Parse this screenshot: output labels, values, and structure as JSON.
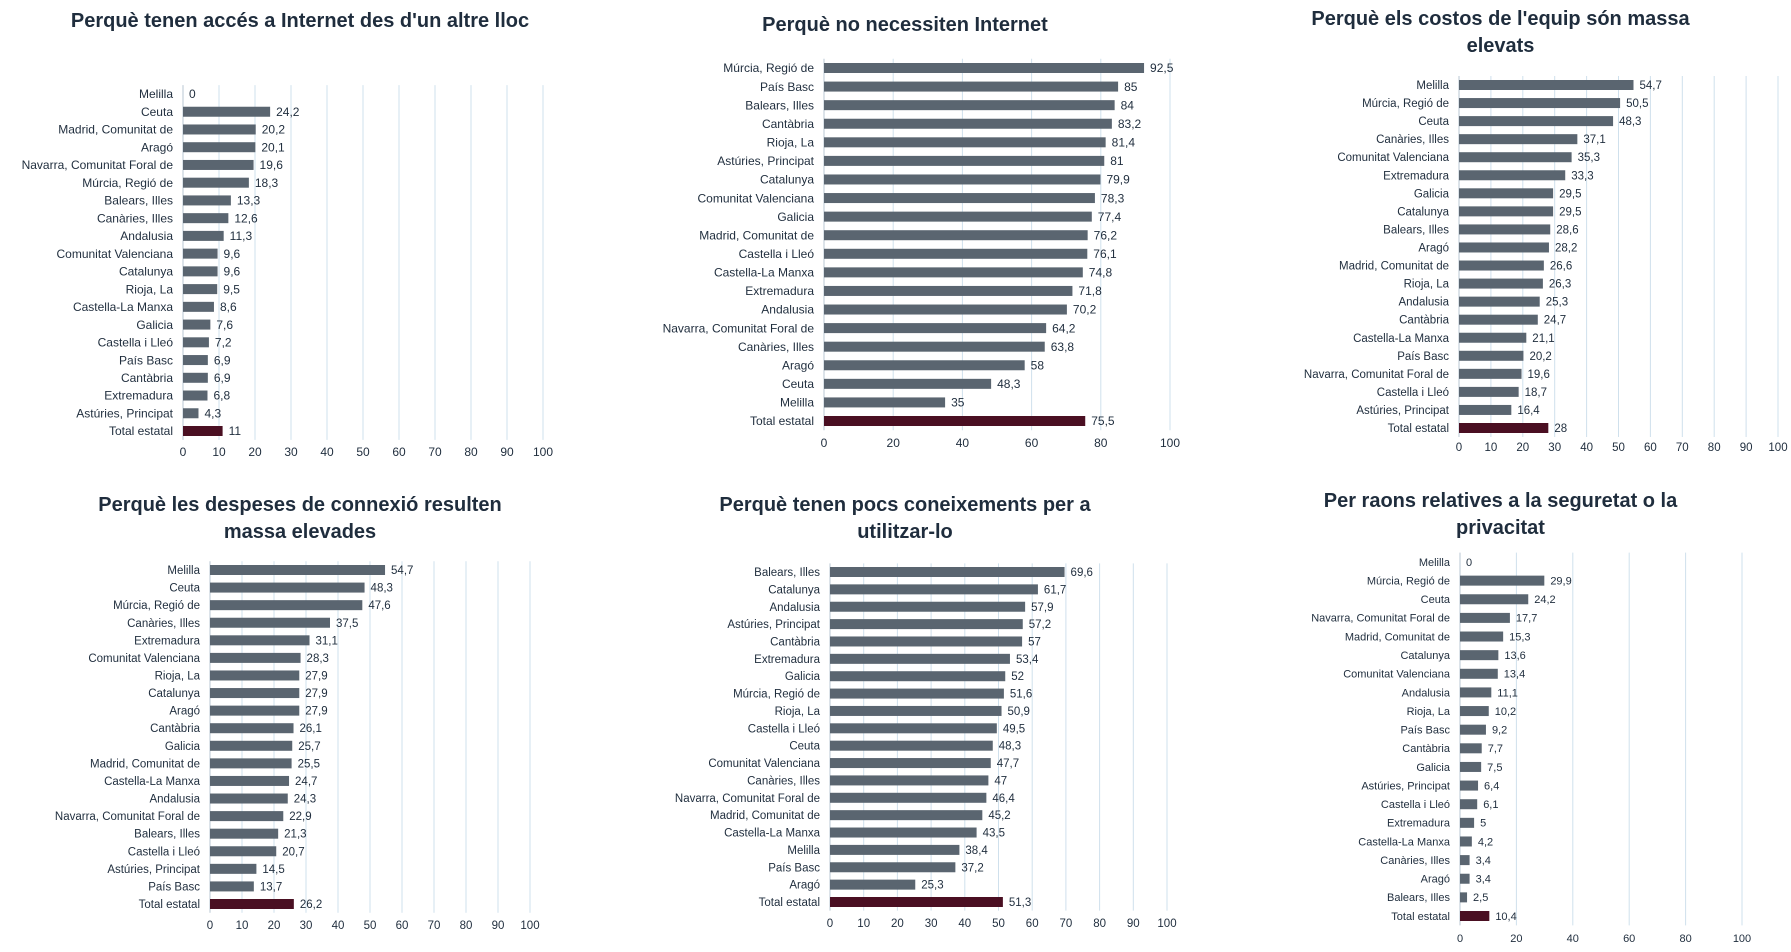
{
  "colors": {
    "bar": "#5a6570",
    "total_bar": "#4a0f22",
    "grid": "#cfe0ec",
    "text": "#1f2d3d"
  },
  "chart_data": [
    {
      "type": "bar",
      "title": "Perquè tenen accés a Internet des d'un altre lloc",
      "categories": [
        "Melilla",
        "Ceuta",
        "Madrid, Comunitat de",
        "Aragó",
        "Navarra, Comunitat Foral de",
        "Múrcia, Regió de",
        "Balears, Illes",
        "Canàries, Illes",
        "Andalusia",
        "Comunitat Valenciana",
        "Catalunya",
        "Rioja, La",
        "Castella-La Manxa",
        "Galicia",
        "Castella i Lleó",
        "País Basc",
        "Cantàbria",
        "Extremadura",
        "Astúries, Principat",
        "Total estatal"
      ],
      "values": [
        0,
        24.2,
        20.2,
        20.1,
        19.6,
        18.3,
        13.3,
        12.6,
        11.3,
        9.6,
        9.6,
        9.5,
        8.6,
        7.6,
        7.2,
        6.9,
        6.9,
        6.8,
        4.3,
        11
      ],
      "value_labels": [
        "0",
        "24,2",
        "20,2",
        "20,1",
        "19,6",
        "18,3",
        "13,3",
        "12,6",
        "11,3",
        "9,6",
        "9,6",
        "9,5",
        "8,6",
        "7,6",
        "7,2",
        "6,9",
        "6,9",
        "6,8",
        "4,3",
        "11"
      ],
      "xlim": [
        0,
        100
      ],
      "ticks": [
        0,
        10,
        20,
        30,
        40,
        50,
        60,
        70,
        80,
        90,
        100
      ],
      "tick_labels": [
        "0",
        "10",
        "20",
        "30",
        "40",
        "50",
        "60",
        "70",
        "80",
        "90",
        "100"
      ],
      "highlight": "Total estatal",
      "xlabel": "",
      "ylabel": "",
      "grid": true
    },
    {
      "type": "bar",
      "title": "Perquè no necessiten Internet",
      "categories": [
        "Múrcia, Regió de",
        "País Basc",
        "Balears, Illes",
        "Cantàbria",
        "Rioja, La",
        "Astúries, Principat",
        "Catalunya",
        "Comunitat Valenciana",
        "Galicia",
        "Madrid, Comunitat de",
        "Castella i Lleó",
        "Castella-La Manxa",
        "Extremadura",
        "Andalusia",
        "Navarra, Comunitat Foral de",
        "Canàries, Illes",
        "Aragó",
        "Ceuta",
        "Melilla",
        "Total estatal"
      ],
      "values": [
        92.5,
        85,
        84,
        83.2,
        81.4,
        81,
        79.9,
        78.3,
        77.4,
        76.2,
        76.1,
        74.8,
        71.8,
        70.2,
        64.2,
        63.8,
        58,
        48.3,
        35,
        75.5
      ],
      "value_labels": [
        "92,5",
        "85",
        "84",
        "83,2",
        "81,4",
        "81",
        "79,9",
        "78,3",
        "77,4",
        "76,2",
        "76,1",
        "74,8",
        "71,8",
        "70,2",
        "64,2",
        "63,8",
        "58",
        "48,3",
        "35",
        "75,5"
      ],
      "xlim": [
        0,
        100
      ],
      "ticks": [
        0,
        20,
        40,
        60,
        80,
        100
      ],
      "tick_labels": [
        "0",
        "20",
        "40",
        "60",
        "80",
        "100"
      ],
      "highlight": "Total estatal",
      "xlabel": "",
      "ylabel": "",
      "grid": true
    },
    {
      "type": "bar",
      "title": "Perquè els costos de l'equip són massa elevats",
      "categories": [
        "Melilla",
        "Múrcia, Regió de",
        "Ceuta",
        "Canàries, Illes",
        "Comunitat Valenciana",
        "Extremadura",
        "Galicia",
        "Catalunya",
        "Balears, Illes",
        "Aragó",
        "Madrid, Comunitat de",
        "Rioja, La",
        "Andalusia",
        "Cantàbria",
        "Castella-La Manxa",
        "País Basc",
        "Navarra, Comunitat Foral de",
        "Castella i Lleó",
        "Astúries, Principat",
        "Total estatal"
      ],
      "values": [
        54.7,
        50.5,
        48.3,
        37.1,
        35.3,
        33.3,
        29.5,
        29.5,
        28.6,
        28.2,
        26.6,
        26.3,
        25.3,
        24.7,
        21.1,
        20.2,
        19.6,
        18.7,
        16.4,
        28
      ],
      "value_labels": [
        "54,7",
        "50,5",
        "48,3",
        "37,1",
        "35,3",
        "33,3",
        "29,5",
        "29,5",
        "28,6",
        "28,2",
        "26,6",
        "26,3",
        "25,3",
        "24,7",
        "21,1",
        "20,2",
        "19,6",
        "18,7",
        "16,4",
        "28"
      ],
      "xlim": [
        0,
        100
      ],
      "ticks": [
        0,
        10,
        20,
        30,
        40,
        50,
        60,
        70,
        80,
        90,
        100
      ],
      "tick_labels": [
        "0",
        "10",
        "20",
        "30",
        "40",
        "50",
        "60",
        "70",
        "80",
        "90",
        "100"
      ],
      "highlight": "Total estatal",
      "xlabel": "",
      "ylabel": "",
      "grid": true
    },
    {
      "type": "bar",
      "title": "Perquè les despeses de connexió resulten massa elevades",
      "categories": [
        "Melilla",
        "Ceuta",
        "Múrcia, Regió de",
        "Canàries, Illes",
        "Extremadura",
        "Comunitat Valenciana",
        "Rioja, La",
        "Catalunya",
        "Aragó",
        "Cantàbria",
        "Galicia",
        "Madrid, Comunitat de",
        "Castella-La Manxa",
        "Andalusia",
        "Navarra, Comunitat Foral de",
        "Balears, Illes",
        "Castella i Lleó",
        "Astúries, Principat",
        "País Basc",
        "Total estatal"
      ],
      "values": [
        54.7,
        48.3,
        47.6,
        37.5,
        31.1,
        28.3,
        27.9,
        27.9,
        27.9,
        26.1,
        25.7,
        25.5,
        24.7,
        24.3,
        22.9,
        21.3,
        20.7,
        14.5,
        13.7,
        26.2
      ],
      "value_labels": [
        "54,7",
        "48,3",
        "47,6",
        "37,5",
        "31,1",
        "28,3",
        "27,9",
        "27,9",
        "27,9",
        "26,1",
        "25,7",
        "25,5",
        "24,7",
        "24,3",
        "22,9",
        "21,3",
        "20,7",
        "14,5",
        "13,7",
        "26,2"
      ],
      "xlim": [
        0,
        100
      ],
      "ticks": [
        0,
        10,
        20,
        30,
        40,
        50,
        60,
        70,
        80,
        90,
        100
      ],
      "tick_labels": [
        "0",
        "10",
        "20",
        "30",
        "40",
        "50",
        "60",
        "70",
        "80",
        "90",
        "100"
      ],
      "highlight": "Total estatal",
      "xlabel": "",
      "ylabel": "",
      "grid": true
    },
    {
      "type": "bar",
      "title": "Perquè tenen pocs coneixements per a utilitzar-lo",
      "categories": [
        "Balears, Illes",
        "Catalunya",
        "Andalusia",
        "Astúries, Principat",
        "Cantàbria",
        "Extremadura",
        "Galicia",
        "Múrcia, Regió de",
        "Rioja, La",
        "Castella i Lleó",
        "Ceuta",
        "Comunitat Valenciana",
        "Canàries, Illes",
        "Navarra, Comunitat Foral de",
        "Madrid, Comunitat de",
        "Castella-La Manxa",
        "Melilla",
        "País Basc",
        "Aragó",
        "Total estatal"
      ],
      "values": [
        69.6,
        61.7,
        57.9,
        57.2,
        57,
        53.4,
        52,
        51.6,
        50.9,
        49.5,
        48.3,
        47.7,
        47,
        46.4,
        45.2,
        43.5,
        38.4,
        37.2,
        25.3,
        51.3
      ],
      "value_labels": [
        "69,6",
        "61,7",
        "57,9",
        "57,2",
        "57",
        "53,4",
        "52",
        "51,6",
        "50,9",
        "49,5",
        "48,3",
        "47,7",
        "47",
        "46,4",
        "45,2",
        "43,5",
        "38,4",
        "37,2",
        "25,3",
        "51,3"
      ],
      "xlim": [
        0,
        100
      ],
      "ticks": [
        0,
        10,
        20,
        30,
        40,
        50,
        60,
        70,
        80,
        90,
        100
      ],
      "tick_labels": [
        "0",
        "10",
        "20",
        "30",
        "40",
        "50",
        "60",
        "70",
        "80",
        "90",
        "100"
      ],
      "highlight": "Total estatal",
      "xlabel": "",
      "ylabel": "",
      "grid": true
    },
    {
      "type": "bar",
      "title": "Per raons relatives a la seguretat o la privacitat",
      "categories": [
        "Melilla",
        "Múrcia, Regió de",
        "Ceuta",
        "Navarra, Comunitat Foral de",
        "Madrid, Comunitat de",
        "Catalunya",
        "Comunitat Valenciana",
        "Andalusia",
        "Rioja, La",
        "País Basc",
        "Cantàbria",
        "Galicia",
        "Astúries, Principat",
        "Castella i Lleó",
        "Extremadura",
        "Castella-La Manxa",
        "Canàries, Illes",
        "Aragó",
        "Balears, Illes",
        "Total estatal"
      ],
      "values": [
        0,
        29.9,
        24.2,
        17.7,
        15.3,
        13.6,
        13.4,
        11.1,
        10.2,
        9.2,
        7.7,
        7.5,
        6.4,
        6.1,
        5,
        4.2,
        3.4,
        3.4,
        2.5,
        10.4
      ],
      "value_labels": [
        "0",
        "29,9",
        "24,2",
        "17,7",
        "15,3",
        "13,6",
        "13,4",
        "11,1",
        "10,2",
        "9,2",
        "7,7",
        "7,5",
        "6,4",
        "6,1",
        "5",
        "4,2",
        "3,4",
        "3,4",
        "2,5",
        "10,4"
      ],
      "xlim": [
        0,
        100
      ],
      "ticks": [
        0,
        20,
        40,
        60,
        80,
        100
      ],
      "tick_labels": [
        "0",
        "20",
        "40",
        "60",
        "80",
        "100"
      ],
      "highlight": "Total estatal",
      "xlabel": "",
      "ylabel": "",
      "grid": true
    }
  ]
}
